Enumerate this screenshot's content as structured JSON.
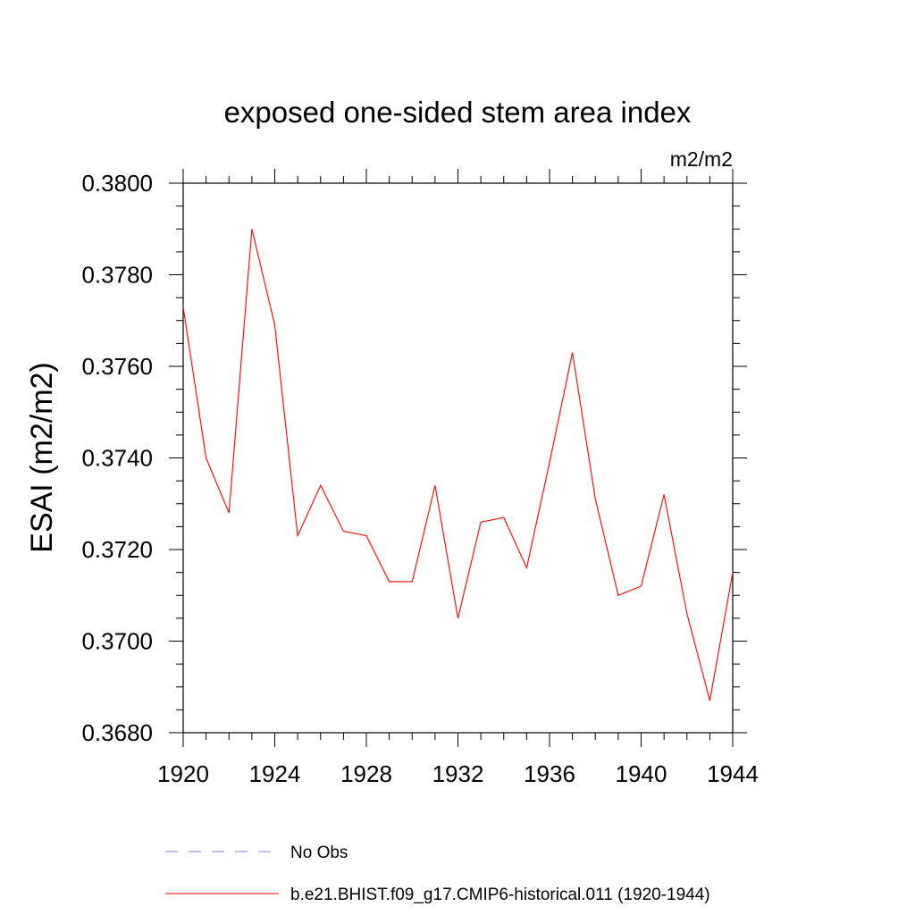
{
  "chart_data": {
    "type": "line",
    "title": "exposed one-sided stem area index",
    "units_label": "m2/m2",
    "ylabel": "ESAI  (m2/m2)",
    "xlabel": "",
    "xlim": [
      1920,
      1944
    ],
    "ylim": [
      0.368,
      0.38
    ],
    "x_ticks": [
      "1920",
      "1924",
      "1928",
      "1932",
      "1936",
      "1940",
      "1944"
    ],
    "x_tick_values": [
      1920,
      1924,
      1928,
      1932,
      1936,
      1940,
      1944
    ],
    "y_ticks": [
      "0.3680",
      "0.3700",
      "0.3720",
      "0.3740",
      "0.3760",
      "0.3780",
      "0.3800"
    ],
    "y_tick_values": [
      0.368,
      0.37,
      0.372,
      0.374,
      0.376,
      0.378,
      0.38
    ],
    "grid": false,
    "legend_position": "bottom",
    "series": [
      {
        "name": "b.e21.BHIST.f09_g17.CMIP6-historical.011 (1920-1944)",
        "color": "#ff0000",
        "style": "solid",
        "x": [
          1920,
          1921,
          1922,
          1923,
          1924,
          1925,
          1926,
          1927,
          1928,
          1929,
          1930,
          1931,
          1932,
          1933,
          1934,
          1935,
          1936,
          1937,
          1938,
          1939,
          1940,
          1941,
          1942,
          1943,
          1944
        ],
        "y": [
          0.3773,
          0.374,
          0.3728,
          0.379,
          0.3769,
          0.3723,
          0.3734,
          0.3724,
          0.3723,
          0.3713,
          0.3713,
          0.3734,
          0.3705,
          0.3726,
          0.3727,
          0.3716,
          0.3739,
          0.3763,
          0.3731,
          0.371,
          0.3712,
          0.3732,
          0.3706,
          0.3687,
          0.3715
        ]
      }
    ],
    "legend": [
      {
        "label": "No Obs",
        "color": "#8080c0",
        "style": "dashed"
      },
      {
        "label": "b.e21.BHIST.f09_g17.CMIP6-historical.011 (1920-1944)",
        "color": "#ff0000",
        "style": "solid"
      }
    ]
  }
}
